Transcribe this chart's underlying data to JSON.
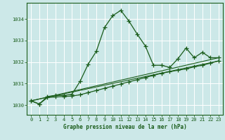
{
  "xlabel": "Graphe pression niveau de la mer (hPa)",
  "bg_color": "#cce8e8",
  "grid_color": "#ffffff",
  "line_color": "#1a5c1a",
  "ylim": [
    1029.55,
    1034.75
  ],
  "yticks": [
    1030,
    1031,
    1032,
    1033,
    1034
  ],
  "xlim": [
    -0.5,
    23.5
  ],
  "xticks": [
    0,
    1,
    2,
    3,
    4,
    5,
    6,
    7,
    8,
    9,
    10,
    11,
    12,
    13,
    14,
    15,
    16,
    17,
    18,
    19,
    20,
    21,
    22,
    23
  ],
  "series1": [
    [
      0,
      1030.2
    ],
    [
      1,
      1030.05
    ],
    [
      2,
      1030.4
    ],
    [
      3,
      1030.45
    ],
    [
      4,
      1030.45
    ],
    [
      5,
      1030.5
    ],
    [
      6,
      1031.1
    ],
    [
      7,
      1031.9
    ],
    [
      8,
      1032.5
    ],
    [
      9,
      1033.6
    ],
    [
      10,
      1034.15
    ],
    [
      11,
      1034.4
    ],
    [
      12,
      1033.9
    ],
    [
      13,
      1033.3
    ],
    [
      14,
      1032.75
    ],
    [
      15,
      1031.85
    ],
    [
      16,
      1031.85
    ],
    [
      17,
      1031.75
    ],
    [
      18,
      1032.15
    ],
    [
      19,
      1032.65
    ],
    [
      20,
      1032.2
    ],
    [
      21,
      1032.45
    ],
    [
      22,
      1032.2
    ],
    [
      23,
      1032.2
    ]
  ],
  "series2": [
    [
      0,
      1030.2
    ],
    [
      1,
      1030.05
    ],
    [
      2,
      1030.35
    ],
    [
      3,
      1030.38
    ],
    [
      4,
      1030.4
    ],
    [
      5,
      1030.42
    ],
    [
      6,
      1030.48
    ],
    [
      7,
      1030.58
    ],
    [
      8,
      1030.68
    ],
    [
      9,
      1030.78
    ],
    [
      10,
      1030.88
    ],
    [
      11,
      1030.98
    ],
    [
      12,
      1031.08
    ],
    [
      13,
      1031.18
    ],
    [
      14,
      1031.28
    ],
    [
      15,
      1031.38
    ],
    [
      16,
      1031.48
    ],
    [
      17,
      1031.55
    ],
    [
      18,
      1031.62
    ],
    [
      19,
      1031.68
    ],
    [
      20,
      1031.78
    ],
    [
      21,
      1031.85
    ],
    [
      22,
      1031.95
    ],
    [
      23,
      1032.05
    ]
  ],
  "series3": [
    [
      0,
      1030.2
    ],
    [
      23,
      1032.2
    ]
  ],
  "series4": [
    [
      0,
      1030.2
    ],
    [
      23,
      1032.05
    ]
  ]
}
